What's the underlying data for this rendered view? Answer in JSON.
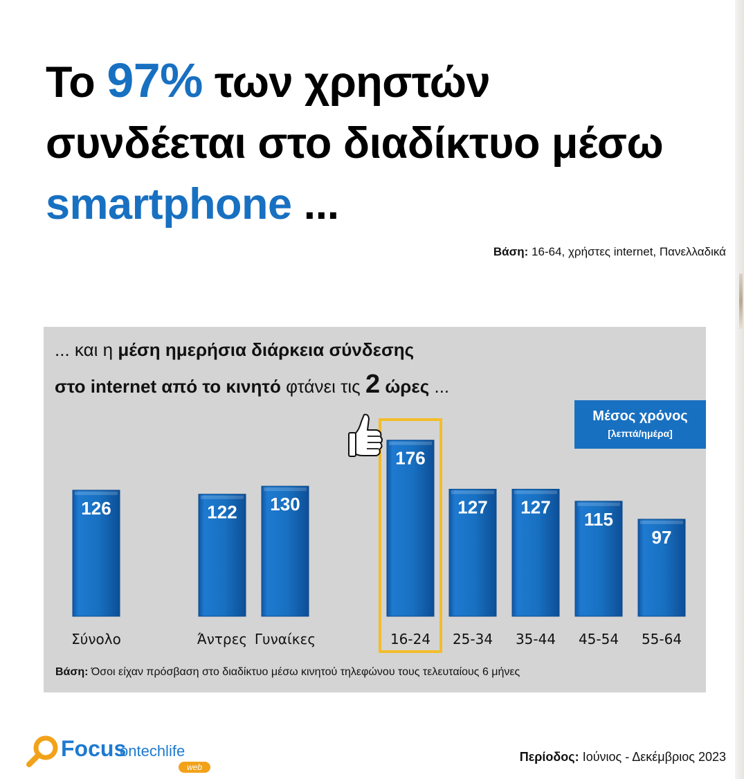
{
  "headline": {
    "pre": "Το",
    "highlight": "97%",
    "line1_rest": "των χρηστών",
    "line2": "συνδέεται στο διαδίκτυο μέσω",
    "line3_highlight": "smartphone",
    "line3_rest": "..."
  },
  "base_top": {
    "label": "Βάση:",
    "text": "16-64, χρήστες internet, Πανελλαδικά"
  },
  "subtitle": {
    "l1_pre": "... και η",
    "l1_bold": "μέση ημερήσια διάρκεια σύνδεσης",
    "l2_bold": "στο internet από το κινητό",
    "l2_mid": "φτάνει τις",
    "l2_num": "2",
    "l2_unit": "ώρες",
    "l2_end": "..."
  },
  "legend": {
    "title": "Μέσος χρόνος",
    "unit": "[λεπτά/ημέρα]"
  },
  "chart_data": {
    "type": "bar",
    "title": "μέση ημερήσια διάρκεια σύνδεσης στο internet από το κινητό",
    "ylabel": "Μέσος χρόνος [λεπτά/ημέρα]",
    "xlabel": "",
    "categories": [
      "Σύνολο",
      "Άντρες",
      "Γυναίκες",
      "16-24",
      "25-34",
      "35-44",
      "45-54",
      "55-64"
    ],
    "values": [
      126,
      122,
      130,
      176,
      127,
      127,
      115,
      97
    ],
    "ylim": [
      0,
      180
    ],
    "highlight": "16-24",
    "bar_color": "#1870c1",
    "highlight_color": "#f3bd2a",
    "grid": false
  },
  "base_bottom": {
    "label": "Βάση:",
    "text": "Όσοι είχαν πρόσβαση στο διαδίκτυο μέσω κινητού τηλεφώνου τους τελευταίους 6 μήνες"
  },
  "period": {
    "label": "Περίοδος:",
    "text": "Ιούνιος - Δεκέμβριος 2023"
  },
  "logo": {
    "word": "Focus",
    "rest": "ontechlife",
    "tag": "web"
  },
  "colors": {
    "accent": "#1870c1",
    "panel": "#d4d4d4",
    "logo_orange": "#f2a21a"
  }
}
